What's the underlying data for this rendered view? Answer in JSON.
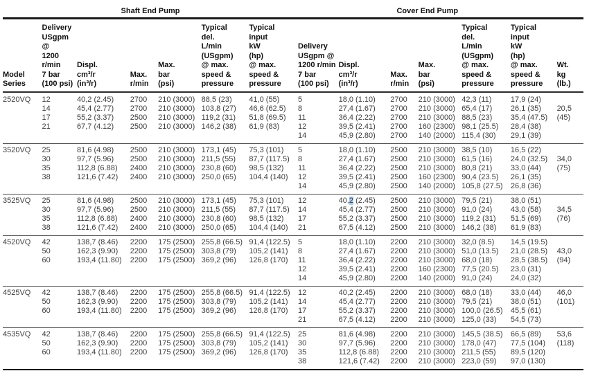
{
  "section_titles": {
    "shaft": "Shaft End Pump",
    "cover": "Cover End Pump"
  },
  "column_headers": {
    "model": "Model\nSeries",
    "delivery": "Delivery\nUSgpm @\n1200 r/min\n7 bar\n(100 psi)",
    "displacement": "Displ.\ncm³/r\n(in³/r)",
    "max_rpm": "Max.\nr/min",
    "max_bar": "Max.\nbar\n(psi)",
    "typical_delivery": "Typical\ndel.\nL/min\n(USgpm)\n@ max.\nspeed &\npressure",
    "typical_input": "Typical\ninput\nkW\n(hp)\n@ max.\nspeed &\npressure",
    "weight": "Wt.\nkg\n(lb.)"
  },
  "colors": {
    "body_text": "#3d3d3d",
    "header_text": "#111111",
    "rule": "#1a1a1a",
    "selection_highlight": "#a9c9ee"
  },
  "groups": [
    {
      "model": "2520VQ",
      "rows": [
        {
          "shaft": [
            "12",
            "40,2 (2.45)",
            "2700",
            "210 (3000)",
            "88,5 (23)",
            "41,0 (55)"
          ],
          "cover": [
            "5",
            "18,0 (1.10)",
            "2700",
            "210 (3000)",
            "42,3 (11)",
            "17,9 (24)"
          ],
          "wt": ""
        },
        {
          "shaft": [
            "14",
            "45,4 (2.77)",
            "2700",
            "210 (3000)",
            "103,8 (27)",
            "46,6 (62.5)"
          ],
          "cover": [
            "8",
            "27,4 (1.67)",
            "2700",
            "210 (3000)",
            "65,4 (17)",
            "26,1 (35)"
          ],
          "wt": "20,5"
        },
        {
          "shaft": [
            "17",
            "55,2 (3.37)",
            "2500",
            "210 (3000)",
            "119,2 (31)",
            "51,8 (69.5)"
          ],
          "cover": [
            "11",
            "36,4 (2.22)",
            "2700",
            "210 (3000)",
            "88,5 (23)",
            "35,4 (47.5)"
          ],
          "wt": "(45)"
        },
        {
          "shaft": [
            "21",
            "67,7 (4.12)",
            "2500",
            "210 (3000)",
            "146,2 (38)",
            "61,9 (83)"
          ],
          "cover": [
            "12",
            "39,5 (2.41)",
            "2700",
            "160 (2300)",
            "98,1 (25.5)",
            "28,4 (38)"
          ],
          "wt": ""
        },
        {
          "shaft": null,
          "cover": [
            "14",
            "45,9 (2.80)",
            "2700",
            "140 (2000)",
            "115,4 (30)",
            "29,1 (39)"
          ],
          "wt": ""
        }
      ]
    },
    {
      "model": "3520VQ",
      "rows": [
        {
          "shaft": [
            "25",
            "81,6 (4.98)",
            "2500",
            "210 (3000)",
            "173,1 (45)",
            "75,3 (101)"
          ],
          "cover": [
            "5",
            "18,0 (1.10)",
            "2500",
            "210 (3000)",
            "38,5 (10)",
            "16,5 (22)"
          ],
          "wt": ""
        },
        {
          "shaft": [
            "30",
            "97,7 (5.96)",
            "2500",
            "210 (3000)",
            "211,5 (55)",
            "87,7 (117.5)"
          ],
          "cover": [
            "8",
            "27,4 (1.67)",
            "2500",
            "210 (3000)",
            "61,5 (16)",
            "24,0 (32.5)"
          ],
          "wt": "34,0"
        },
        {
          "shaft": [
            "35",
            "112,8 (6.88)",
            "2400",
            "210 (3000)",
            "230,8 (60)",
            "98,5 (132)"
          ],
          "cover": [
            "11",
            "36,4 (2.22)",
            "2500",
            "210 (3000)",
            "80,8 (21)",
            "33,0 (44)"
          ],
          "wt": "(75)"
        },
        {
          "shaft": [
            "38",
            "121,6 (7.42)",
            "2400",
            "210 (3000)",
            "250,0 (65)",
            "104,4 (140)"
          ],
          "cover": [
            "12",
            "39,5 (2.41)",
            "2500",
            "160 (2300)",
            "90,4 (23.5)",
            "26,1 (35)"
          ],
          "wt": ""
        },
        {
          "shaft": null,
          "cover": [
            "14",
            "45,9 (2.80)",
            "2500",
            "140 (2000)",
            "105,8 (27.5)",
            "26,8 (36)"
          ],
          "wt": ""
        }
      ]
    },
    {
      "model": "3525VQ",
      "rows": [
        {
          "shaft": [
            "25",
            "81,6 (4.98)",
            "2500",
            "210 (3000)",
            "173,1 (45)",
            "75,3 (101)"
          ],
          "cover": [
            "12",
            {
              "pre": "40,",
              "sel": "2",
              "post": " (2.45)"
            },
            "2500",
            "210 (3000)",
            "79,5 (21)",
            "38,0 (51)"
          ],
          "wt": ""
        },
        {
          "shaft": [
            "30",
            "97,7 (5.96)",
            "2500",
            "210 (3000)",
            "211,5 (55)",
            "87,7 (117.5)"
          ],
          "cover": [
            "14",
            "45,4 (2.77)",
            "2500",
            "210 (3000)",
            "91,0 (24)",
            "43,0 (58)"
          ],
          "wt": "34,5"
        },
        {
          "shaft": [
            "35",
            "112,8 (6.88)",
            "2400",
            "210 (3000)",
            "230,8 (60)",
            "98,5 (132)"
          ],
          "cover": [
            "17",
            "55,2 (3.37)",
            "2500",
            "210 (3000)",
            "119,2 (31)",
            "51,5 (69)"
          ],
          "wt": "(76)"
        },
        {
          "shaft": [
            "38",
            "121,6 (7.42)",
            "2400",
            "210 (3000)",
            "250,0 (65)",
            "104,4 (140)"
          ],
          "cover": [
            "21",
            "67,5 (4.12)",
            "2500",
            "210 (3000)",
            "146,2 (38)",
            "61,9 (83)"
          ],
          "wt": ""
        }
      ]
    },
    {
      "model": "4520VQ",
      "rows": [
        {
          "shaft": [
            "42",
            "138,7 (8.46)",
            "2200",
            "175 (2500)",
            "255,8 (66.5)",
            "91,4 (122.5)"
          ],
          "cover": [
            "5",
            "18,0 (1.10)",
            "2200",
            "210 (3000)",
            "32,0 (8.5)",
            "14,5 (19.5)"
          ],
          "wt": ""
        },
        {
          "shaft": [
            "50",
            "162,3 (9.90)",
            "2200",
            "175 (2500)",
            "303,8 (79)",
            "105,2 (141)"
          ],
          "cover": [
            "8",
            "27,4 (1.67)",
            "2200",
            "210 (3000)",
            "51,0 (13.5)",
            "21,0 (28.5)"
          ],
          "wt": "43,0"
        },
        {
          "shaft": [
            "60",
            "193,4 (11.80)",
            "2200",
            "175 (2500)",
            "369,2 (96)",
            "126,8 (170)"
          ],
          "cover": [
            "11",
            "36,4 (2.22)",
            "2200",
            "210 (3000)",
            "68,0 (18)",
            "28,5 (38.5)"
          ],
          "wt": "(94)"
        },
        {
          "shaft": null,
          "cover": [
            "12",
            "39,5 (2.41)",
            "2200",
            "160 (2300)",
            "77,5 (20.5)",
            "23,0 (31)"
          ],
          "wt": ""
        },
        {
          "shaft": null,
          "cover": [
            "14",
            "45,9 (2.80)",
            "2200",
            "140 (2000)",
            "91,0 (24)",
            "24,0 (32)"
          ],
          "wt": ""
        }
      ]
    },
    {
      "model": "4525VQ",
      "rows": [
        {
          "shaft": [
            "42",
            "138,7 (8.46)",
            "2200",
            "175 (2500)",
            "255,8 (66.5)",
            "91,4 (122.5)"
          ],
          "cover": [
            "12",
            "40,2 (2.45)",
            "2200",
            "210 (3000)",
            "68,0 (18)",
            "33,0 (44)"
          ],
          "wt": "46,0"
        },
        {
          "shaft": [
            "50",
            "162,3 (9.90)",
            "2200",
            "175 (2500)",
            "303,8 (79)",
            "105,2 (141)"
          ],
          "cover": [
            "14",
            "45,4 (2.77)",
            "2200",
            "210 (3000)",
            "79,5 (21)",
            "38,0 (51)"
          ],
          "wt": "(101)"
        },
        {
          "shaft": [
            "60",
            "193,4 (11.80)",
            "2200",
            "175 (2500)",
            "369,2 (96)",
            "126,8 (170)"
          ],
          "cover": [
            "17",
            "55,2 (3.37)",
            "2200",
            "210 (3000)",
            "100,0 (26.5)",
            "45,5 (61)"
          ],
          "wt": ""
        },
        {
          "shaft": null,
          "cover": [
            "21",
            "67,5 (4.12)",
            "2200",
            "210 (3000)",
            "125,0 (33)",
            "54,5 (73)"
          ],
          "wt": ""
        }
      ]
    },
    {
      "model": "4535VQ",
      "rows": [
        {
          "shaft": [
            "42",
            "138,7 (8.46)",
            "2200",
            "175 (2500)",
            "255,8 (66.5)",
            "91,4 (122.5)"
          ],
          "cover": [
            "25",
            "81,6 (4.98)",
            "2200",
            "210 (3000)",
            "145,5 (38.5)",
            "66,5 (89)"
          ],
          "wt": "53,6"
        },
        {
          "shaft": [
            "50",
            "162,3 (9.90)",
            "2200",
            "175 (2500)",
            "303,8 (79)",
            "105,2 (141)"
          ],
          "cover": [
            "30",
            "97,7 (5.96)",
            "2200",
            "210 (3000)",
            "178,0 (47)",
            "77,5 (104)"
          ],
          "wt": "(118)"
        },
        {
          "shaft": [
            "60",
            "193,4 (11.80)",
            "2200",
            "175 (2500)",
            "369,2 (96)",
            "126,8 (170)"
          ],
          "cover": [
            "35",
            "112,8 (6.88)",
            "2200",
            "210 (3000)",
            "211,5 (55)",
            "89,5 (120)"
          ],
          "wt": ""
        },
        {
          "shaft": null,
          "cover": [
            "38",
            "121,6 (7.42)",
            "2200",
            "210 (3000)",
            "223,0 (59)",
            "97,0 (130)"
          ],
          "wt": ""
        }
      ]
    }
  ]
}
